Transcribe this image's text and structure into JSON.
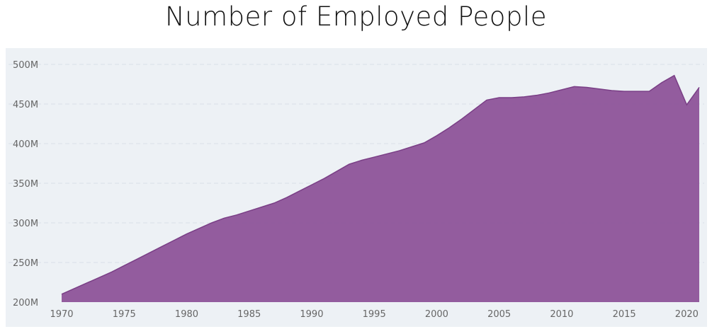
{
  "chart_data": {
    "type": "area",
    "title": "Number of Employed People",
    "xlabel": "",
    "ylabel": "",
    "xlim": [
      1970,
      2021
    ],
    "ylim": [
      200,
      500
    ],
    "y_unit_suffix": "M",
    "x_ticks": [
      1970,
      1975,
      1980,
      1985,
      1990,
      1995,
      2000,
      2005,
      2010,
      2015,
      2020
    ],
    "y_ticks": [
      200,
      250,
      300,
      350,
      400,
      450,
      500
    ],
    "grid": "horizontal-dashed",
    "legend": "none",
    "series": [
      {
        "color": "#8e5399",
        "x": [
          1970,
          1971,
          1972,
          1973,
          1974,
          1975,
          1976,
          1977,
          1978,
          1979,
          1980,
          1981,
          1982,
          1983,
          1984,
          1985,
          1986,
          1987,
          1988,
          1989,
          1990,
          1991,
          1992,
          1993,
          1994,
          1995,
          1996,
          1997,
          1998,
          1999,
          2000,
          2001,
          2002,
          2003,
          2004,
          2005,
          2006,
          2007,
          2008,
          2009,
          2010,
          2011,
          2012,
          2013,
          2014,
          2015,
          2016,
          2017,
          2018,
          2019,
          2020,
          2021
        ],
        "values": [
          210,
          217,
          224,
          231,
          238,
          246,
          254,
          262,
          270,
          278,
          286,
          293,
          300,
          306,
          310,
          315,
          320,
          325,
          332,
          340,
          348,
          356,
          365,
          374,
          379,
          383,
          387,
          391,
          396,
          401,
          410,
          420,
          431,
          443,
          455,
          458,
          458,
          459,
          461,
          464,
          468,
          472,
          471,
          469,
          467,
          466,
          466,
          466,
          477,
          486,
          449,
          471
        ]
      }
    ]
  },
  "colors": {
    "plot_background": "#edf1f5",
    "area_fill": "#8e5399",
    "area_stroke": "#7a3f86",
    "grid": "#d9dfe6",
    "tick_text": "#666666"
  }
}
